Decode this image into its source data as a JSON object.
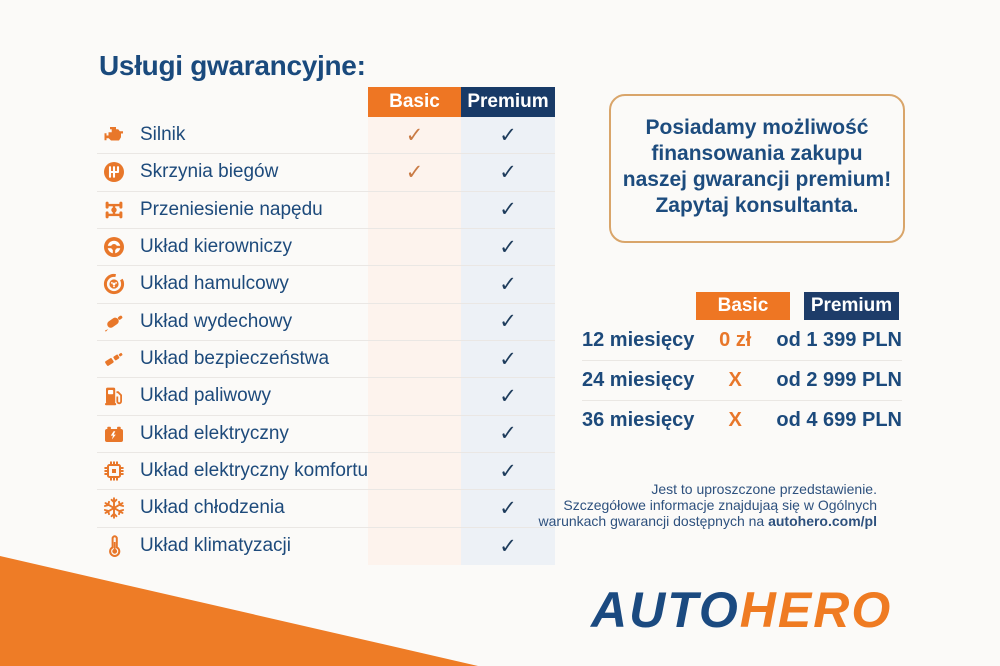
{
  "colors": {
    "accent_orange": "#ee7623",
    "navy": "#183a67",
    "text_navy": "#1d4a7b",
    "basic_check_orange": "#c97b45",
    "basic_column_bg": "#fdf3ed",
    "premium_column_bg": "#edf1f6",
    "note_border_tan": "#d9a56a",
    "logo_navy": "#1b4a80",
    "logo_orange": "#ef7b22"
  },
  "services": {
    "heading": "Usługi gwarancyjne:",
    "check_glyph": "✓",
    "columns": [
      {
        "label": "Basic"
      },
      {
        "label": "Premium"
      }
    ],
    "rows": [
      {
        "label": "Silnik",
        "icon": "engine-icon",
        "basic": true,
        "premium": true
      },
      {
        "label": "Skrzynia biegów",
        "icon": "gearbox-icon",
        "basic": true,
        "premium": true
      },
      {
        "label": "Przeniesienie napędu",
        "icon": "drivetrain-icon",
        "basic": false,
        "premium": true
      },
      {
        "label": "Układ kierowniczy",
        "icon": "steering-wheel-icon",
        "basic": false,
        "premium": true
      },
      {
        "label": "Układ hamulcowy",
        "icon": "brake-disc-icon",
        "basic": false,
        "premium": true
      },
      {
        "label": "Układ wydechowy",
        "icon": "exhaust-icon",
        "basic": false,
        "premium": true
      },
      {
        "label": "Układ bezpieczeństwa",
        "icon": "seatbelt-icon",
        "basic": false,
        "premium": true
      },
      {
        "label": "Układ paliwowy",
        "icon": "fuel-pump-icon",
        "basic": false,
        "premium": true
      },
      {
        "label": "Układ elektryczny",
        "icon": "battery-icon",
        "basic": false,
        "premium": true
      },
      {
        "label": "Układ elektryczny komfortu",
        "icon": "chip-icon",
        "basic": false,
        "premium": true
      },
      {
        "label": "Układ chłodzenia",
        "icon": "snowflake-icon",
        "basic": false,
        "premium": true
      },
      {
        "label": "Układ klimatyzacji",
        "icon": "thermometer-icon",
        "basic": false,
        "premium": true
      }
    ]
  },
  "financing_note": {
    "lines": [
      "Posiadamy możliwość",
      "finansowania zakupu",
      "naszej gwarancji premium!",
      "Zapytaj konsultanta."
    ]
  },
  "pricing": {
    "columns": [
      "Basic",
      "Premium"
    ],
    "rows": [
      {
        "term": "12 miesięcy",
        "basic": "0 zł",
        "premium": "od 1 399 PLN"
      },
      {
        "term": "24 miesięcy",
        "basic": "X",
        "premium": "od 2 999 PLN"
      },
      {
        "term": "36 miesięcy",
        "basic": "X",
        "premium": "od 4 699 PLN"
      }
    ]
  },
  "disclaimer": {
    "lines": [
      "Jest to uproszczone przedstawienie.",
      "Szczegółowe informacje znajdujaą się w Ogólnych"
    ],
    "line3_prefix": "warunkach gwarancji dostępnych na ",
    "line3_bold": "autohero.com/pl"
  },
  "logo": {
    "part1": "AUTO",
    "part2": "HERO"
  }
}
